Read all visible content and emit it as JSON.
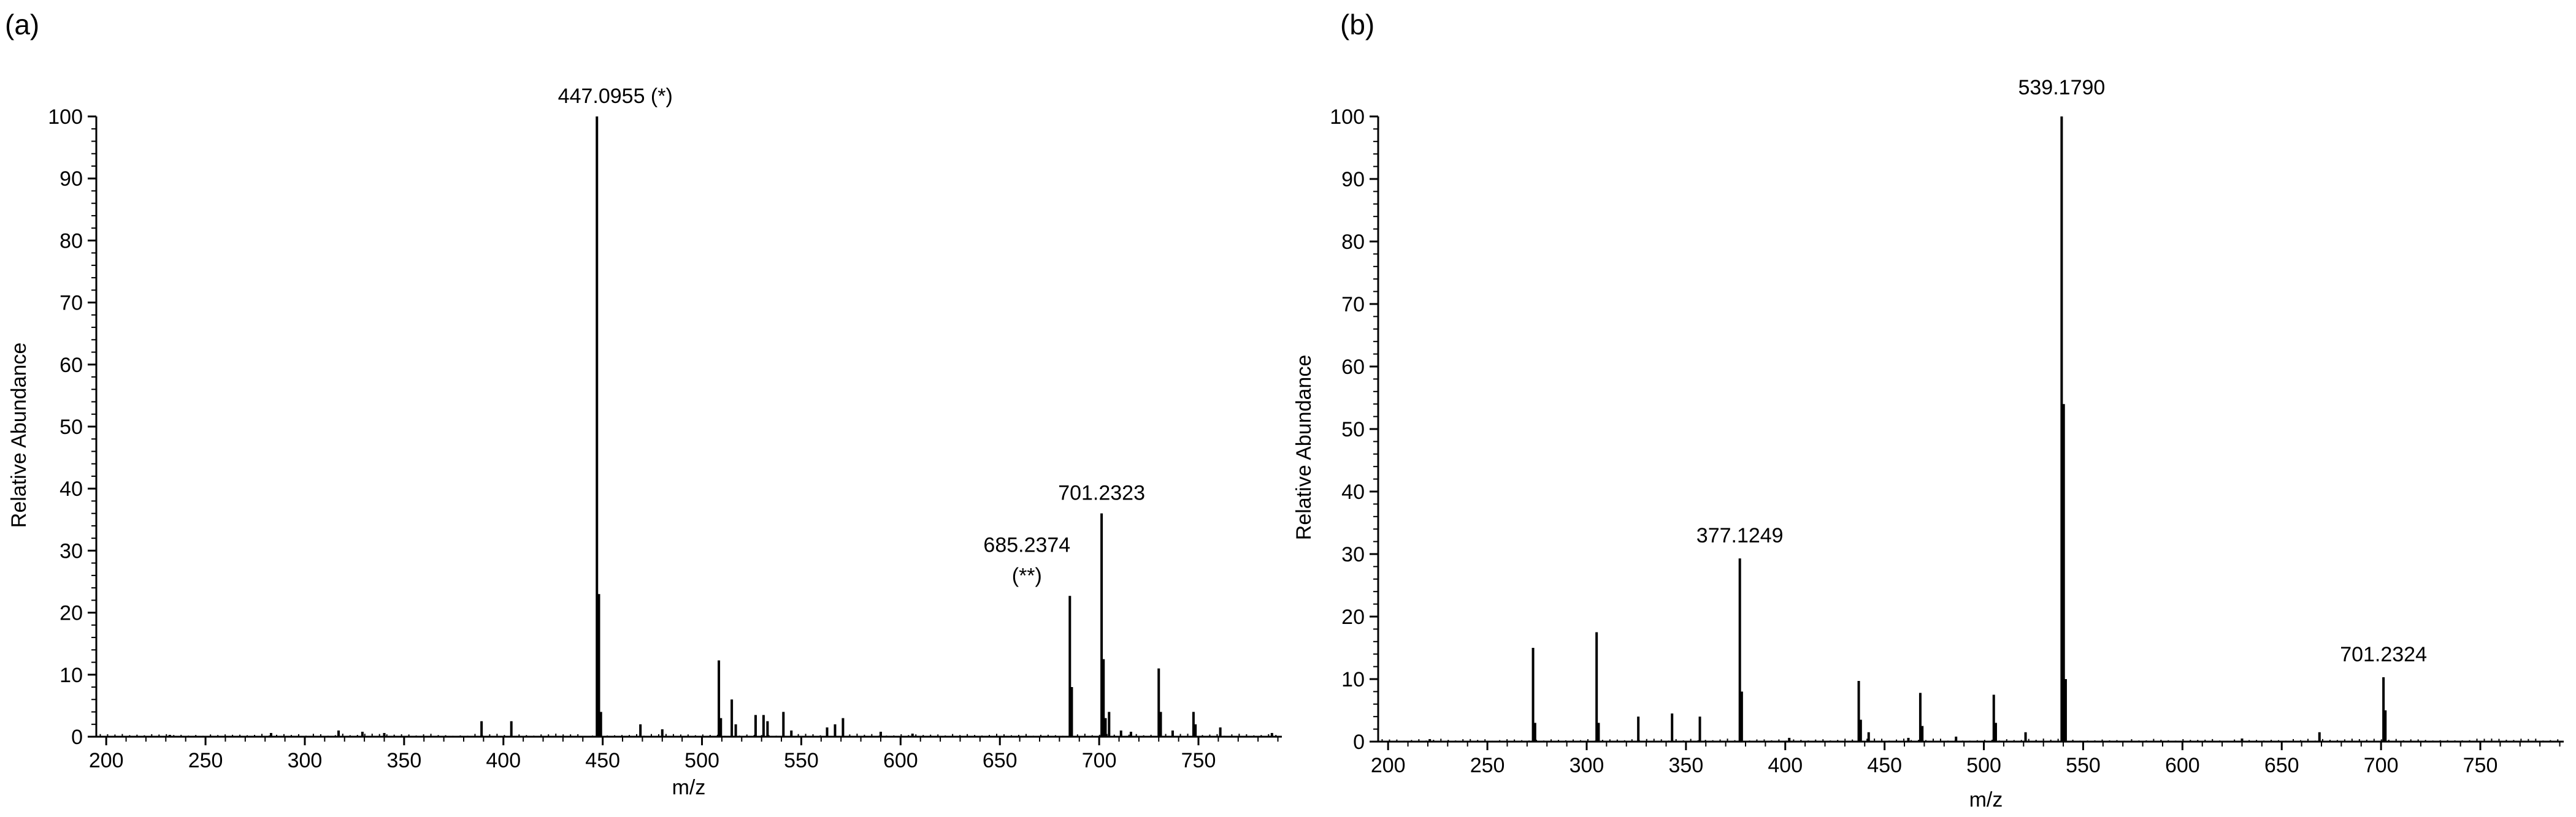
{
  "chart_data": [
    {
      "type": "bar",
      "panel_label": "(a)",
      "xlabel": "m/z",
      "ylabel": "Relative Abundance",
      "xlim": [
        195,
        792
      ],
      "ylim": [
        0,
        100
      ],
      "xticks": [
        200,
        250,
        300,
        350,
        400,
        450,
        500,
        550,
        600,
        650,
        700,
        750
      ],
      "yticks": [
        0,
        10,
        20,
        30,
        40,
        50,
        60,
        70,
        80,
        90,
        100
      ],
      "peaks": [
        {
          "mz": 232,
          "rel": 0.3
        },
        {
          "mz": 283,
          "rel": 0.6
        },
        {
          "mz": 317,
          "rel": 1.0
        },
        {
          "mz": 329,
          "rel": 0.8
        },
        {
          "mz": 340,
          "rel": 0.6
        },
        {
          "mz": 389,
          "rel": 2.5
        },
        {
          "mz": 404,
          "rel": 2.5
        },
        {
          "mz": 447.0955,
          "rel": 100
        },
        {
          "mz": 448.1,
          "rel": 23
        },
        {
          "mz": 449.1,
          "rel": 4
        },
        {
          "mz": 469,
          "rel": 2
        },
        {
          "mz": 480,
          "rel": 1.2
        },
        {
          "mz": 508.5,
          "rel": 12.3
        },
        {
          "mz": 509.5,
          "rel": 3
        },
        {
          "mz": 515,
          "rel": 6
        },
        {
          "mz": 517,
          "rel": 2
        },
        {
          "mz": 527,
          "rel": 3.5
        },
        {
          "mz": 531,
          "rel": 3.5
        },
        {
          "mz": 533,
          "rel": 2.5
        },
        {
          "mz": 541,
          "rel": 4
        },
        {
          "mz": 545,
          "rel": 1
        },
        {
          "mz": 563,
          "rel": 1.5
        },
        {
          "mz": 567,
          "rel": 2
        },
        {
          "mz": 571,
          "rel": 3
        },
        {
          "mz": 590,
          "rel": 0.8
        },
        {
          "mz": 606,
          "rel": 0.5
        },
        {
          "mz": 685.2374,
          "rel": 22.7
        },
        {
          "mz": 686.2,
          "rel": 8
        },
        {
          "mz": 701.2323,
          "rel": 36
        },
        {
          "mz": 702.2,
          "rel": 12.5
        },
        {
          "mz": 703.2,
          "rel": 3
        },
        {
          "mz": 705,
          "rel": 4
        },
        {
          "mz": 711,
          "rel": 1
        },
        {
          "mz": 716,
          "rel": 0.8
        },
        {
          "mz": 730,
          "rel": 11
        },
        {
          "mz": 731,
          "rel": 4
        },
        {
          "mz": 737,
          "rel": 1
        },
        {
          "mz": 747.5,
          "rel": 4
        },
        {
          "mz": 748.5,
          "rel": 2
        },
        {
          "mz": 761,
          "rel": 1.5
        },
        {
          "mz": 787,
          "rel": 0.6
        }
      ],
      "annotations": [
        {
          "mz": 447.0955,
          "rel": 100,
          "text": "447.0955 (*)"
        },
        {
          "mz": 701.2323,
          "rel": 36,
          "text": "701.2323"
        },
        {
          "mz": 685.2374,
          "rel": 22.7,
          "text": "685.2374",
          "text2": "(**)"
        }
      ]
    },
    {
      "type": "bar",
      "panel_label": "(b)",
      "xlabel": "m/z",
      "ylabel": "Relative Abundance",
      "xlim": [
        195,
        792
      ],
      "ylim": [
        0,
        100
      ],
      "xticks": [
        200,
        250,
        300,
        350,
        400,
        450,
        500,
        550,
        600,
        650,
        700,
        750
      ],
      "yticks": [
        0,
        10,
        20,
        30,
        40,
        50,
        60,
        70,
        80,
        90,
        100
      ],
      "peaks": [
        {
          "mz": 221,
          "rel": 0.4
        },
        {
          "mz": 273,
          "rel": 15
        },
        {
          "mz": 274,
          "rel": 3
        },
        {
          "mz": 305,
          "rel": 17.5
        },
        {
          "mz": 306,
          "rel": 3
        },
        {
          "mz": 326,
          "rel": 4
        },
        {
          "mz": 343,
          "rel": 4.5
        },
        {
          "mz": 357,
          "rel": 4
        },
        {
          "mz": 377.1249,
          "rel": 29.3
        },
        {
          "mz": 378.1,
          "rel": 8
        },
        {
          "mz": 402,
          "rel": 0.6
        },
        {
          "mz": 437,
          "rel": 9.7
        },
        {
          "mz": 438,
          "rel": 3.5
        },
        {
          "mz": 442,
          "rel": 1.5
        },
        {
          "mz": 462,
          "rel": 0.6
        },
        {
          "mz": 468,
          "rel": 7.8
        },
        {
          "mz": 469,
          "rel": 2.5
        },
        {
          "mz": 486,
          "rel": 0.8
        },
        {
          "mz": 505,
          "rel": 7.5
        },
        {
          "mz": 506,
          "rel": 3
        },
        {
          "mz": 521,
          "rel": 1.5
        },
        {
          "mz": 539.179,
          "rel": 100
        },
        {
          "mz": 540.2,
          "rel": 54
        },
        {
          "mz": 541.2,
          "rel": 10
        },
        {
          "mz": 630,
          "rel": 0.5
        },
        {
          "mz": 669,
          "rel": 1.5
        },
        {
          "mz": 701.2324,
          "rel": 10.3
        },
        {
          "mz": 702.2,
          "rel": 5
        }
      ],
      "annotations": [
        {
          "mz": 539.179,
          "rel": 100,
          "text": "539.1790"
        },
        {
          "mz": 377.1249,
          "rel": 29.3,
          "text": "377.1249"
        },
        {
          "mz": 701.2324,
          "rel": 10.3,
          "text": "701.2324"
        }
      ]
    }
  ]
}
